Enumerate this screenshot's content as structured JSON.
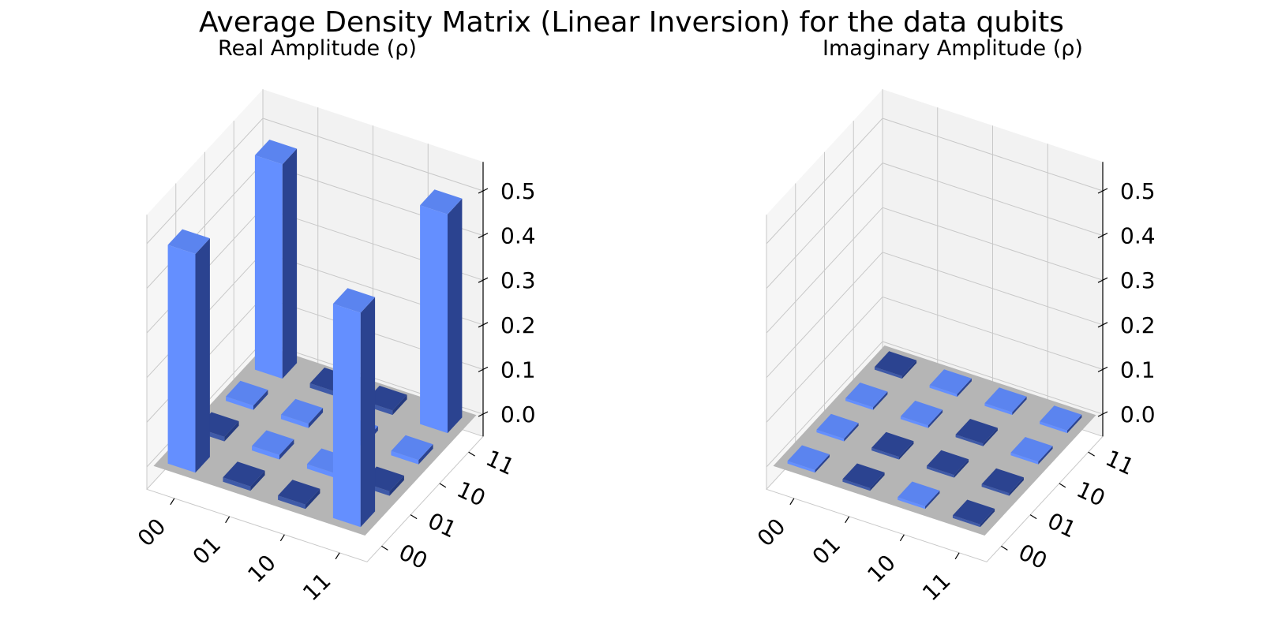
{
  "figure": {
    "title": "Average Density Matrix (Linear Inversion) for the data qubits"
  },
  "colors": {
    "bar_positive": "#648fff",
    "bar_negative": "#2b4390",
    "floor": "#b5b5b5",
    "pane_back": "#f2f2f2",
    "pane_side": "#f6f6f6",
    "grid": "#c8c8c8"
  },
  "chart_data": [
    {
      "type": "bar3d",
      "title": "Real Amplitude (ρ)",
      "row_labels": [
        "00",
        "01",
        "10",
        "11"
      ],
      "col_labels": [
        "00",
        "01",
        "10",
        "11"
      ],
      "zlim": [
        0,
        0.5
      ],
      "zticks": [
        "0.0",
        "0.1",
        "0.2",
        "0.3",
        "0.4",
        "0.5"
      ],
      "values": [
        [
          0.49,
          -0.01,
          0.01,
          0.48
        ],
        [
          -0.01,
          0.01,
          0.01,
          -0.01
        ],
        [
          -0.01,
          0.01,
          0.01,
          -0.01
        ],
        [
          0.48,
          -0.01,
          0.01,
          0.49
        ]
      ]
    },
    {
      "type": "bar3d",
      "title": "Imaginary Amplitude (ρ)",
      "row_labels": [
        "00",
        "01",
        "10",
        "11"
      ],
      "col_labels": [
        "00",
        "01",
        "10",
        "11"
      ],
      "zlim": [
        0,
        0.5
      ],
      "zticks": [
        "0.0",
        "0.1",
        "0.2",
        "0.3",
        "0.4",
        "0.5"
      ],
      "values": [
        [
          0.005,
          0.005,
          0.005,
          -0.005
        ],
        [
          -0.005,
          -0.005,
          0.005,
          0.005
        ],
        [
          0.005,
          -0.005,
          -0.005,
          0.005
        ],
        [
          -0.005,
          -0.005,
          0.005,
          0.005
        ]
      ]
    }
  ]
}
